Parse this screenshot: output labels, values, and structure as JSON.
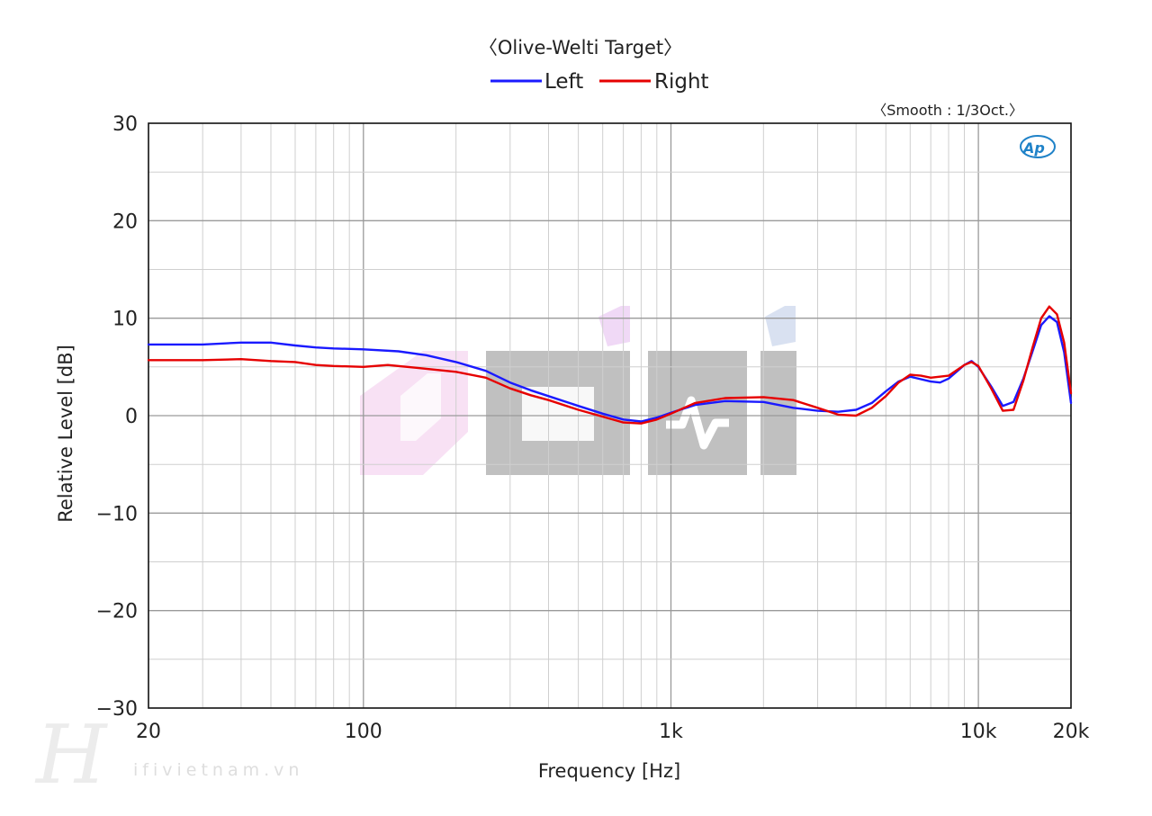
{
  "chart_data": {
    "type": "line",
    "title": "〈Olive-Welti Target〉",
    "annotation": "〈Smooth : 1/3Oct.〉",
    "xlabel": "Frequency [Hz]",
    "ylabel": "Relative Level [dB]",
    "xscale": "log",
    "xlim": [
      20,
      20000
    ],
    "ylim": [
      -30,
      30
    ],
    "grid": true,
    "legend_placement": "top-center",
    "x_ticks": [
      {
        "value": 20,
        "label": "20"
      },
      {
        "value": 100,
        "label": "100"
      },
      {
        "value": 1000,
        "label": "1k"
      },
      {
        "value": 10000,
        "label": "10k"
      },
      {
        "value": 20000,
        "label": "20k"
      }
    ],
    "y_ticks": [
      {
        "value": 30,
        "label": "30"
      },
      {
        "value": 20,
        "label": "20"
      },
      {
        "value": 10,
        "label": "10"
      },
      {
        "value": 0,
        "label": "0"
      },
      {
        "value": -10,
        "label": "−10"
      },
      {
        "value": -20,
        "label": "−20"
      },
      {
        "value": -30,
        "label": "−30"
      }
    ],
    "series": [
      {
        "name": "Left",
        "color": "#1a1aff",
        "points": [
          [
            20,
            7.3
          ],
          [
            30,
            7.3
          ],
          [
            40,
            7.5
          ],
          [
            50,
            7.5
          ],
          [
            60,
            7.2
          ],
          [
            70,
            7.0
          ],
          [
            80,
            6.9
          ],
          [
            100,
            6.8
          ],
          [
            130,
            6.6
          ],
          [
            160,
            6.2
          ],
          [
            200,
            5.5
          ],
          [
            250,
            4.6
          ],
          [
            300,
            3.4
          ],
          [
            350,
            2.6
          ],
          [
            400,
            2.0
          ],
          [
            500,
            1.0
          ],
          [
            600,
            0.2
          ],
          [
            700,
            -0.4
          ],
          [
            800,
            -0.6
          ],
          [
            900,
            -0.2
          ],
          [
            1000,
            0.3
          ],
          [
            1200,
            1.1
          ],
          [
            1500,
            1.5
          ],
          [
            2000,
            1.4
          ],
          [
            2500,
            0.8
          ],
          [
            3000,
            0.5
          ],
          [
            3500,
            0.4
          ],
          [
            4000,
            0.6
          ],
          [
            4500,
            1.3
          ],
          [
            5000,
            2.5
          ],
          [
            5500,
            3.5
          ],
          [
            6000,
            4.0
          ],
          [
            7000,
            3.5
          ],
          [
            7500,
            3.4
          ],
          [
            8000,
            3.8
          ],
          [
            9000,
            5.2
          ],
          [
            9500,
            5.6
          ],
          [
            10000,
            5.0
          ],
          [
            11000,
            3.0
          ],
          [
            12000,
            1.0
          ],
          [
            13000,
            1.4
          ],
          [
            14000,
            3.8
          ],
          [
            15000,
            6.6
          ],
          [
            16000,
            9.3
          ],
          [
            17000,
            10.2
          ],
          [
            18000,
            9.6
          ],
          [
            19000,
            6.5
          ],
          [
            20000,
            1.3
          ]
        ]
      },
      {
        "name": "Right",
        "color": "#e60000",
        "points": [
          [
            20,
            5.7
          ],
          [
            30,
            5.7
          ],
          [
            40,
            5.8
          ],
          [
            50,
            5.6
          ],
          [
            60,
            5.5
          ],
          [
            70,
            5.2
          ],
          [
            80,
            5.1
          ],
          [
            100,
            5.0
          ],
          [
            120,
            5.2
          ],
          [
            150,
            4.9
          ],
          [
            200,
            4.5
          ],
          [
            250,
            3.9
          ],
          [
            300,
            2.8
          ],
          [
            350,
            2.1
          ],
          [
            400,
            1.6
          ],
          [
            500,
            0.6
          ],
          [
            600,
            -0.1
          ],
          [
            700,
            -0.7
          ],
          [
            800,
            -0.8
          ],
          [
            900,
            -0.4
          ],
          [
            1000,
            0.2
          ],
          [
            1200,
            1.3
          ],
          [
            1500,
            1.8
          ],
          [
            2000,
            1.9
          ],
          [
            2500,
            1.6
          ],
          [
            3000,
            0.8
          ],
          [
            3500,
            0.1
          ],
          [
            4000,
            0.0
          ],
          [
            4500,
            0.8
          ],
          [
            5000,
            2.0
          ],
          [
            5500,
            3.4
          ],
          [
            6000,
            4.2
          ],
          [
            6500,
            4.1
          ],
          [
            7000,
            3.9
          ],
          [
            8000,
            4.1
          ],
          [
            9000,
            5.2
          ],
          [
            9500,
            5.5
          ],
          [
            10000,
            5.1
          ],
          [
            11000,
            2.8
          ],
          [
            12000,
            0.5
          ],
          [
            13000,
            0.6
          ],
          [
            14000,
            3.6
          ],
          [
            15000,
            7.0
          ],
          [
            16000,
            10.0
          ],
          [
            17000,
            11.2
          ],
          [
            18000,
            10.4
          ],
          [
            19000,
            7.5
          ],
          [
            20000,
            2.3
          ]
        ]
      }
    ]
  },
  "logo": {
    "text": "Ap",
    "color": "#1f82c8"
  },
  "watermark": {
    "site": "ifivietnam.vn"
  }
}
